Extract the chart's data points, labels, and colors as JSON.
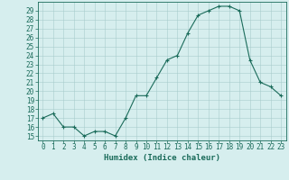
{
  "x": [
    0,
    1,
    2,
    3,
    4,
    5,
    6,
    7,
    8,
    9,
    10,
    11,
    12,
    13,
    14,
    15,
    16,
    17,
    18,
    19,
    20,
    21,
    22,
    23
  ],
  "y": [
    17,
    17.5,
    16,
    16,
    15,
    15.5,
    15.5,
    15,
    17,
    19.5,
    19.5,
    21.5,
    23.5,
    24,
    26.5,
    28.5,
    29,
    29.5,
    29.5,
    29,
    23.5,
    21,
    20.5,
    19.5
  ],
  "line_color": "#1a6b5a",
  "marker": "+",
  "bg_color": "#d6eeee",
  "grid_color": "#a8cccc",
  "xlabel": "Humidex (Indice chaleur)",
  "ylim": [
    14.5,
    30.0
  ],
  "xlim": [
    -0.5,
    23.5
  ],
  "yticks": [
    15,
    16,
    17,
    18,
    19,
    20,
    21,
    22,
    23,
    24,
    25,
    26,
    27,
    28,
    29
  ],
  "xticks": [
    0,
    1,
    2,
    3,
    4,
    5,
    6,
    7,
    8,
    9,
    10,
    11,
    12,
    13,
    14,
    15,
    16,
    17,
    18,
    19,
    20,
    21,
    22,
    23
  ],
  "tick_fontsize": 5.5,
  "label_fontsize": 6.5,
  "axis_color": "#1a6b5a",
  "marker_size": 3,
  "linewidth": 0.8
}
